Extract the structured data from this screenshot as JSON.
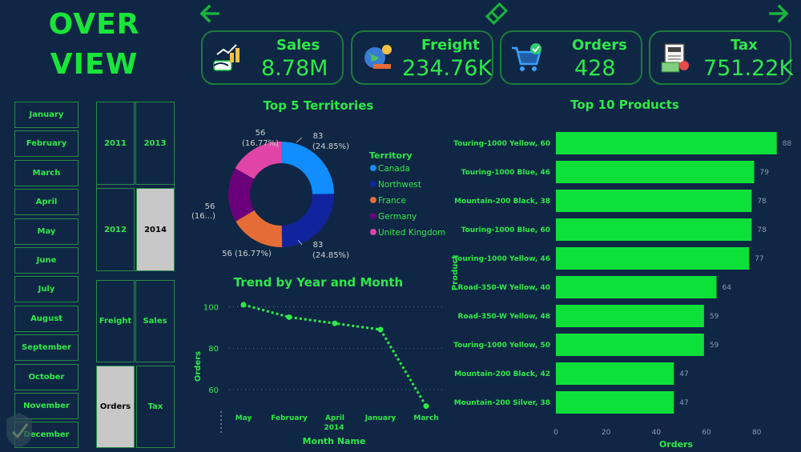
{
  "header": {
    "title_line1": "OVER",
    "title_line2": "VIEW"
  },
  "nav": {
    "back_icon": "arrow-left-icon",
    "bookmark_icon": "eraser-icon",
    "forward_icon": "arrow-right-icon"
  },
  "kpis": [
    {
      "label": "Sales",
      "value": "8.78M",
      "icon": "money-hand-icon"
    },
    {
      "label": "Freight",
      "value": "234.76K",
      "icon": "globe-shipping-icon"
    },
    {
      "label": "Orders",
      "value": "428",
      "icon": "shopping-cart-icon"
    },
    {
      "label": "Tax",
      "value": "751.22K",
      "icon": "tax-document-icon"
    }
  ],
  "months": [
    "January",
    "February",
    "March",
    "April",
    "May",
    "June",
    "July",
    "August",
    "September",
    "October",
    "November",
    "December"
  ],
  "years": {
    "y2011": "2011",
    "y2013": "2013",
    "y2012": "2012",
    "y2014": "2014",
    "selected": "2014"
  },
  "measures": {
    "freight": "Freight",
    "sales": "Sales",
    "orders": "Orders",
    "tax": "Tax",
    "selected": "Orders"
  },
  "donut": {
    "title": "Top 5 Territories",
    "legend_title": "Territory",
    "labels": {
      "top_left_1": "56",
      "top_left_2": "(16.77%)",
      "top_right_1": "83",
      "top_right_2": "(24.85%)",
      "left_1": "56",
      "left_2": "(16...)",
      "bottom_left": "56 (16.77%)",
      "bottom_right_1": "83",
      "bottom_right_2": "(24.85%)"
    }
  },
  "line_chart": {
    "title": "Trend by Year and Month",
    "xlabel": "Month Name",
    "ylabel": "Orders",
    "year_label": "2014"
  },
  "bar_chart": {
    "title": "Top 10 Products",
    "xlabel": "Orders",
    "ylabel": "Product"
  },
  "chart_data": [
    {
      "type": "pie",
      "title": "Top 5 Territories",
      "legend_title": "Territory",
      "categories": [
        "Canada",
        "Northwest",
        "France",
        "Germany",
        "United Kingdom"
      ],
      "values": [
        83,
        83,
        56,
        56,
        56
      ],
      "colors": [
        "#118dff",
        "#12239e",
        "#e66c37",
        "#6b007b",
        "#e044a7"
      ],
      "legend_position": "right"
    },
    {
      "type": "line",
      "title": "Trend by Year and Month",
      "xlabel": "Month Name",
      "ylabel": "Orders",
      "x": [
        "May",
        "February",
        "April",
        "January",
        "March"
      ],
      "y": [
        101,
        95,
        92,
        89,
        52
      ],
      "yticks": [
        60,
        80,
        100
      ],
      "ylim": [
        48,
        106
      ],
      "color": "#2ee84a",
      "grid": true
    },
    {
      "type": "bar",
      "orientation": "horizontal",
      "title": "Top 10 Products",
      "xlabel": "Orders",
      "ylabel": "Product",
      "categories": [
        "Touring-1000 Yellow, 60",
        "Touring-1000 Blue, 46",
        "Mountain-200 Black, 38",
        "Touring-1000 Blue, 60",
        "Touring-1000 Yellow, 46",
        "Road-350-W Yellow, 40",
        "Road-350-W Yellow, 48",
        "Touring-1000 Yellow, 50",
        "Mountain-200 Black, 42",
        "Mountain-200 Silver, 38"
      ],
      "values": [
        88,
        79,
        78,
        78,
        77,
        64,
        59,
        59,
        47,
        47
      ],
      "xticks": [
        0,
        20,
        40,
        60,
        80
      ],
      "xlim": [
        0,
        90
      ],
      "color": "#0ee03a",
      "grid": false
    }
  ]
}
